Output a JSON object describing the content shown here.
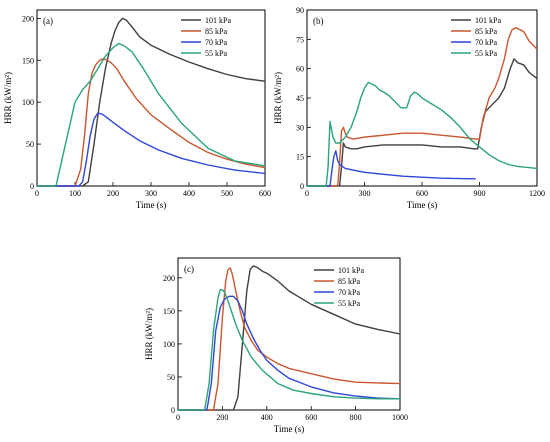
{
  "colors": {
    "101 kPa": "#404040",
    "85 kPa": "#c9572f",
    "70 kPa": "#2f47d8",
    "55 kPa": "#2aa57a"
  },
  "chart_data": [
    {
      "panel": "(a)",
      "type": "line",
      "xlabel": "Time (s)",
      "ylabel": "HRR (kW/m²)",
      "xlim": [
        0,
        600
      ],
      "ylim": [
        0,
        210
      ],
      "xticks": [
        0,
        100,
        200,
        300,
        400,
        500,
        600
      ],
      "yticks": [
        0,
        50,
        100,
        150,
        200
      ],
      "legend": "top-right",
      "series": [
        {
          "name": "101 kPa",
          "x": [
            0,
            120,
            135,
            150,
            165,
            180,
            195,
            205,
            215,
            225,
            235,
            250,
            270,
            300,
            350,
            400,
            450,
            500,
            550,
            600
          ],
          "y": [
            0,
            0,
            5,
            50,
            100,
            140,
            170,
            185,
            195,
            200,
            198,
            190,
            178,
            168,
            157,
            148,
            140,
            133,
            128,
            125
          ]
        },
        {
          "name": "85 kPa",
          "x": [
            0,
            100,
            115,
            125,
            135,
            145,
            155,
            165,
            175,
            185,
            195,
            210,
            230,
            260,
            300,
            350,
            400,
            450,
            500,
            550,
            600
          ],
          "y": [
            0,
            0,
            20,
            60,
            110,
            135,
            145,
            150,
            152,
            150,
            147,
            140,
            125,
            105,
            85,
            68,
            52,
            40,
            32,
            26,
            22
          ]
        },
        {
          "name": "70 kPa",
          "x": [
            0,
            110,
            120,
            130,
            140,
            150,
            160,
            170,
            180,
            200,
            230,
            270,
            320,
            380,
            450,
            520,
            600
          ],
          "y": [
            0,
            0,
            5,
            30,
            60,
            80,
            87,
            86,
            83,
            76,
            66,
            54,
            43,
            33,
            25,
            19,
            15
          ]
        },
        {
          "name": "55 kPa",
          "x": [
            0,
            50,
            60,
            80,
            100,
            120,
            140,
            160,
            180,
            200,
            215,
            230,
            250,
            280,
            320,
            380,
            450,
            520,
            600
          ],
          "y": [
            0,
            0,
            20,
            60,
            100,
            115,
            125,
            140,
            155,
            165,
            170,
            167,
            160,
            140,
            110,
            75,
            45,
            30,
            24
          ]
        }
      ]
    },
    {
      "panel": "(b)",
      "type": "line",
      "xlabel": "Time (s)",
      "ylabel": "HRR (kW/m²)",
      "xlim": [
        0,
        1200
      ],
      "ylim": [
        0,
        90
      ],
      "xticks": [
        0,
        300,
        600,
        900,
        1200
      ],
      "yticks": [
        0,
        15,
        30,
        45,
        60,
        75,
        90
      ],
      "legend": "top-right",
      "series": [
        {
          "name": "101 kPa",
          "x": [
            0,
            170,
            180,
            190,
            200,
            230,
            260,
            300,
            400,
            500,
            600,
            700,
            800,
            870,
            890,
            910,
            930,
            960,
            1000,
            1030,
            1060,
            1080,
            1100,
            1130,
            1160,
            1200
          ],
          "y": [
            0,
            0,
            10,
            22,
            20,
            19,
            19,
            20,
            21,
            21,
            21,
            20,
            20,
            19,
            19,
            30,
            38,
            41,
            45,
            50,
            60,
            65,
            63,
            62,
            58,
            55
          ]
        },
        {
          "name": "85 kPa",
          "x": [
            0,
            160,
            170,
            180,
            190,
            200,
            210,
            240,
            300,
            400,
            500,
            600,
            700,
            800,
            880,
            900,
            920,
            950,
            980,
            1000,
            1030,
            1050,
            1070,
            1090,
            1110,
            1130,
            1160,
            1200
          ],
          "y": [
            0,
            0,
            12,
            28,
            30,
            27,
            25,
            24,
            25,
            26,
            27,
            27,
            26,
            25,
            24,
            24,
            35,
            45,
            50,
            55,
            65,
            75,
            80,
            81,
            80,
            79,
            74,
            70
          ]
        },
        {
          "name": "70 kPa",
          "x": [
            0,
            120,
            130,
            140,
            150,
            160,
            170,
            200,
            250,
            300,
            400,
            500,
            600,
            700,
            800,
            880
          ],
          "y": [
            0,
            0,
            8,
            15,
            18,
            13,
            11,
            9,
            8,
            7,
            6,
            5,
            4.5,
            4,
            3.8,
            3.7
          ]
        },
        {
          "name": "55 kPa",
          "x": [
            0,
            100,
            110,
            120,
            135,
            150,
            170,
            200,
            230,
            260,
            280,
            300,
            320,
            340,
            360,
            380,
            400,
            430,
            460,
            490,
            520,
            540,
            560,
            580,
            600,
            650,
            700,
            750,
            800,
            850,
            900,
            950,
            1000,
            1050,
            1100,
            1150,
            1200
          ],
          "y": [
            0,
            0,
            10,
            33,
            25,
            22,
            22,
            25,
            30,
            38,
            45,
            50,
            53,
            52,
            51,
            49,
            48,
            46,
            43,
            40,
            40,
            46,
            48,
            47,
            45,
            42,
            39,
            35,
            30,
            24,
            20,
            16,
            13,
            11,
            10,
            9.5,
            9
          ]
        }
      ]
    },
    {
      "panel": "(c)",
      "type": "line",
      "xlabel": "Time (s)",
      "ylabel": "HRR (kW/m²)",
      "xlim": [
        0,
        1000
      ],
      "ylim": [
        0,
        230
      ],
      "xticks": [
        0,
        200,
        400,
        600,
        800,
        1000
      ],
      "yticks": [
        0,
        50,
        100,
        150,
        200
      ],
      "legend": "top-right",
      "series": [
        {
          "name": "101 kPa",
          "x": [
            0,
            250,
            270,
            290,
            310,
            325,
            340,
            360,
            380,
            400,
            450,
            500,
            550,
            600,
            700,
            800,
            900,
            1000
          ],
          "y": [
            0,
            0,
            20,
            100,
            180,
            213,
            218,
            215,
            210,
            207,
            195,
            180,
            170,
            160,
            145,
            130,
            122,
            115
          ]
        },
        {
          "name": "85 kPa",
          "x": [
            0,
            160,
            180,
            200,
            215,
            225,
            235,
            245,
            260,
            280,
            300,
            330,
            360,
            400,
            450,
            500,
            600,
            700,
            800,
            900,
            1000
          ],
          "y": [
            0,
            0,
            40,
            140,
            195,
            212,
            215,
            205,
            180,
            150,
            125,
            105,
            90,
            80,
            70,
            63,
            55,
            47,
            42,
            41,
            40
          ]
        },
        {
          "name": "70 kPa",
          "x": [
            0,
            130,
            150,
            170,
            190,
            210,
            230,
            250,
            270,
            290,
            310,
            340,
            370,
            400,
            450,
            500,
            600,
            700,
            800,
            900,
            1000
          ],
          "y": [
            0,
            0,
            40,
            120,
            155,
            168,
            172,
            172,
            165,
            150,
            130,
            108,
            90,
            75,
            60,
            48,
            35,
            26,
            21,
            18,
            17
          ]
        },
        {
          "name": "55 kPa",
          "x": [
            0,
            120,
            140,
            160,
            180,
            190,
            200,
            210,
            220,
            240,
            260,
            290,
            330,
            380,
            450,
            520,
            600,
            700,
            800,
            900,
            1000
          ],
          "y": [
            0,
            0,
            40,
            120,
            170,
            182,
            182,
            178,
            170,
            150,
            130,
            105,
            80,
            60,
            40,
            30,
            25,
            20,
            18,
            17,
            17
          ]
        }
      ]
    }
  ]
}
